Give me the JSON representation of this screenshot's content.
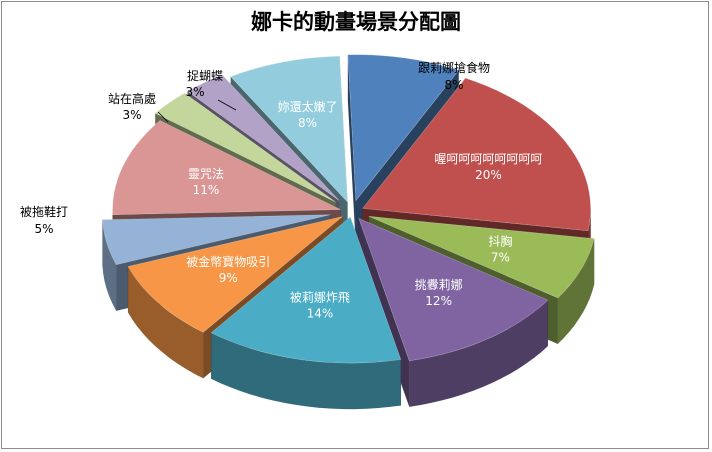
{
  "chart_data": {
    "type": "pie",
    "title": "娜卡的動畫場景分配圖",
    "three_d": true,
    "exploded": true,
    "legend": "none",
    "slices": [
      {
        "label": "跟莉娜搶食物",
        "value": 8,
        "pct_label": "8%",
        "color": "#4f81bd",
        "label_position": "outside"
      },
      {
        "label": "喔呵呵呵呵呵呵呵呵",
        "value": 20,
        "pct_label": "20%",
        "color": "#c0504d",
        "label_position": "inside"
      },
      {
        "label": "抖胸",
        "value": 7,
        "pct_label": "7%",
        "color": "#9bbb59",
        "label_position": "inside"
      },
      {
        "label": "挑釁莉娜",
        "value": 12,
        "pct_label": "12%",
        "color": "#8064a2",
        "label_position": "inside"
      },
      {
        "label": "被莉娜炸飛",
        "value": 14,
        "pct_label": "14%",
        "color": "#4bacc6",
        "label_position": "inside"
      },
      {
        "label": "被金幣寶物吸引",
        "value": 9,
        "pct_label": "9%",
        "color": "#f79646",
        "label_position": "inside"
      },
      {
        "label": "被拖鞋打",
        "value": 5,
        "pct_label": "5%",
        "color": "#95b3d7",
        "label_position": "outside"
      },
      {
        "label": "靈咒法",
        "value": 11,
        "pct_label": "11%",
        "color": "#d99694",
        "label_position": "inside"
      },
      {
        "label": "站在高處",
        "value": 3,
        "pct_label": "3%",
        "color": "#c3d69b",
        "label_position": "outside"
      },
      {
        "label": "捉蝴蝶",
        "value": 3,
        "pct_label": "3%",
        "color": "#b2a2c7",
        "label_position": "outside"
      },
      {
        "label": "妳還太嫩了",
        "value": 8,
        "pct_label": "8%",
        "color": "#93cddd",
        "label_position": "inside"
      }
    ]
  }
}
